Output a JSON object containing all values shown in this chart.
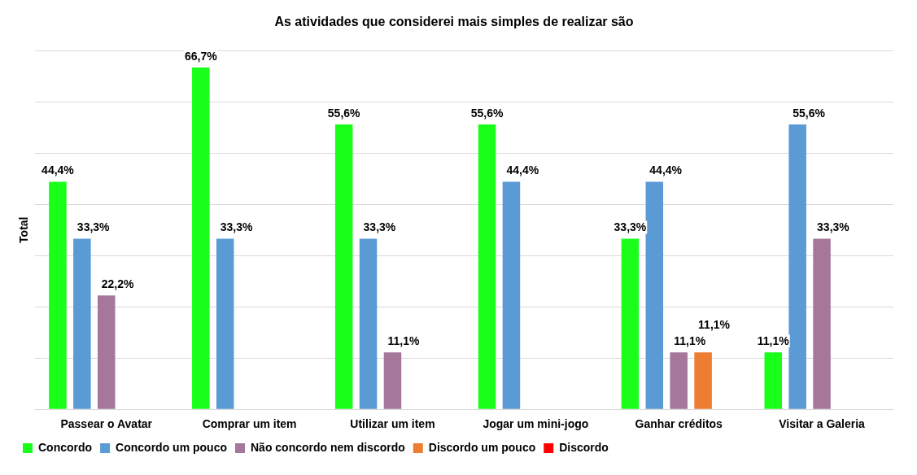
{
  "chart_data": {
    "type": "bar",
    "title": "As atividades que considerei mais simples de realizar são",
    "ylabel": "Total",
    "categories": [
      "Passear o Avatar",
      "Comprar um item",
      "Utilizar um item",
      "Jogar um mini-jogo",
      "Ganhar créditos",
      "Visitar a Galeria"
    ],
    "series": [
      {
        "name": "Concordo",
        "color": "#1aff1a",
        "values": [
          44.4,
          66.7,
          55.6,
          55.6,
          33.3,
          11.1
        ],
        "value_labels": [
          "44,4%",
          "66,7%",
          "55,6%",
          "55,6%",
          "33,3%",
          "11,1%"
        ]
      },
      {
        "name": "Concordo um pouco",
        "color": "#5b9bd5",
        "values": [
          33.3,
          33.3,
          33.3,
          44.4,
          44.4,
          55.6
        ],
        "value_labels": [
          "33,3%",
          "33,3%",
          "33,3%",
          "44,4%",
          "44,4%",
          "55,6%"
        ]
      },
      {
        "name": "Não concordo nem discordo",
        "color": "#a5779b",
        "values": [
          22.2,
          null,
          11.1,
          null,
          11.1,
          33.3
        ],
        "value_labels": [
          "22,2%",
          null,
          "11,1%",
          null,
          "11,1%",
          "33,3%"
        ]
      },
      {
        "name": "Discordo um pouco",
        "color": "#ed7d31",
        "values": [
          null,
          null,
          null,
          null,
          11.1,
          null
        ],
        "value_labels": [
          null,
          null,
          null,
          null,
          "11,1%",
          null
        ]
      },
      {
        "name": "Discordo",
        "color": "#ff0000",
        "values": [
          null,
          null,
          null,
          null,
          null,
          null
        ],
        "value_labels": [
          null,
          null,
          null,
          null,
          null,
          null
        ]
      }
    ],
    "ylim": [
      0,
      70
    ],
    "yticks": [
      {
        "value": 0,
        "label": null
      },
      {
        "value": 10,
        "label": null
      },
      {
        "value": 20,
        "label": null
      },
      {
        "value": 30,
        "label": null
      },
      {
        "value": 40,
        "label": null
      },
      {
        "value": 50,
        "label": null
      },
      {
        "value": 60,
        "label": null
      },
      {
        "value": 70,
        "label": null
      }
    ],
    "tick_labels": "x",
    "grid": "y",
    "legend": "bottom"
  }
}
